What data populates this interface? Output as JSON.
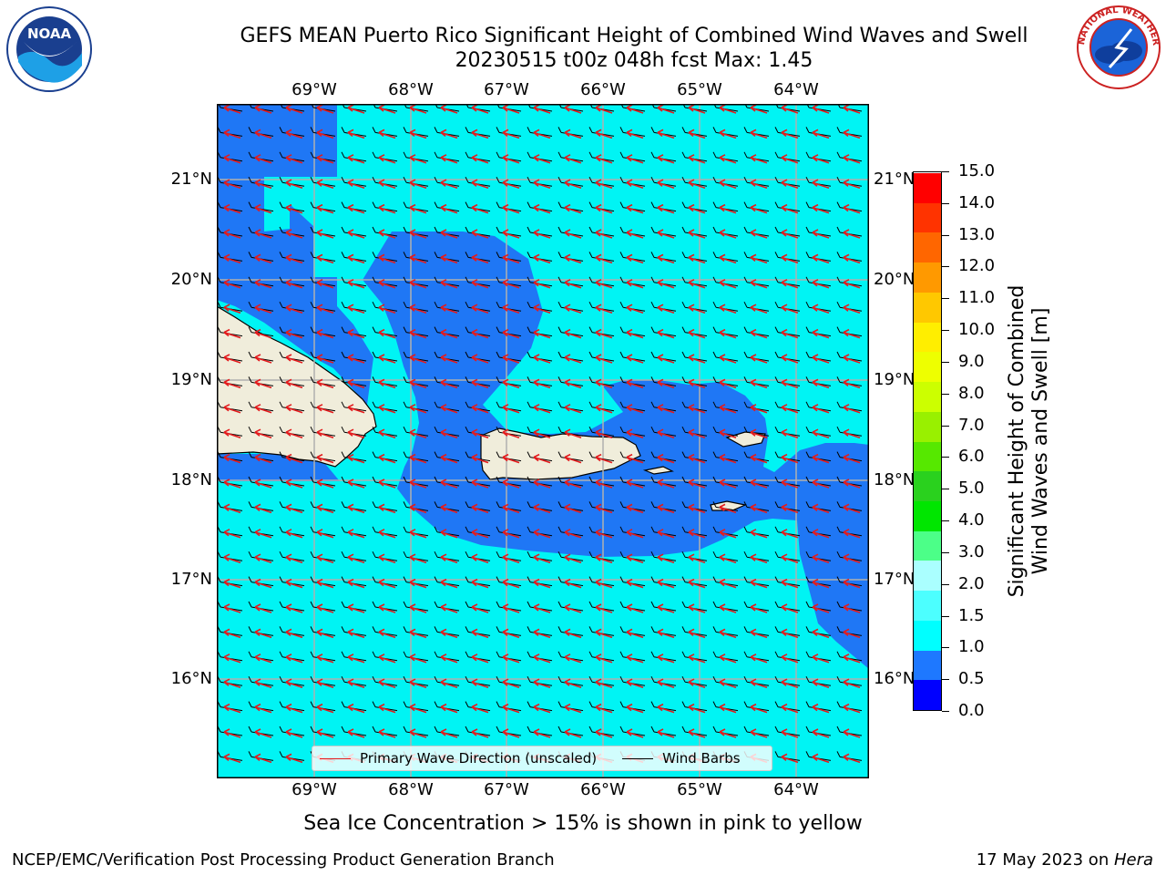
{
  "header": {
    "title_line1": "GEFS MEAN Puerto Rico Significant Height of Combined Wind Waves and Swell",
    "title_line2": "20230515 t00z 048h fcst   Max: 1.45"
  },
  "logos": {
    "left_text": "NOAA",
    "left_ring_text": "NATIONAL OCEANIC AND ATMOSPHERIC ADMINISTRATION",
    "left_bottom_text": "U.S. DEPARTMENT OF COMMERCE",
    "right_text": "NATIONAL WEATHER SERVICE"
  },
  "map": {
    "lon_labels": [
      "69°W",
      "68°W",
      "67°W",
      "66°W",
      "65°W",
      "64°W"
    ],
    "lat_labels": [
      "21°N",
      "20°N",
      "19°N",
      "18°N",
      "17°N",
      "16°N"
    ],
    "colors": {
      "deep": "#1f77f5",
      "shallow": "#00f4f4",
      "land": "#f0eddb",
      "coast": "#000000",
      "grid": "#b0b0b0",
      "wave_arrow": "#e41a1c",
      "barb": "#000000"
    }
  },
  "legend": {
    "wave_label": "Primary Wave Direction (unscaled)",
    "barb_label": "Wind Barbs",
    "wave_color": "#e41a1c",
    "barb_color": "#000000"
  },
  "colorbar": {
    "title_line1": "Significant Height of Combined",
    "title_line2": "Wind Waves and Swell [m]",
    "labels": [
      "0.0",
      "0.5",
      "1.0",
      "1.5",
      "2.0",
      "3.0",
      "4.0",
      "5.0",
      "6.0",
      "7.0",
      "8.0",
      "9.0",
      "10.0",
      "11.0",
      "12.0",
      "13.0",
      "14.0",
      "15.0"
    ],
    "colors": [
      "#0000ff",
      "#1e78ff",
      "#00ffff",
      "#4cffff",
      "#aaffff",
      "#4cff88",
      "#00e600",
      "#2ad11e",
      "#56e800",
      "#99f000",
      "#ccff00",
      "#eeff00",
      "#ffee00",
      "#ffc800",
      "#ff9900",
      "#ff6600",
      "#ff3300",
      "#ff0000"
    ]
  },
  "footer": {
    "note": "Sea Ice Concentration > 15% is shown in pink to yellow",
    "left": "NCEP/EMC/Verification Post Processing Product Generation Branch",
    "right_prefix": "17 May 2023 on ",
    "right_host": "Hera"
  }
}
